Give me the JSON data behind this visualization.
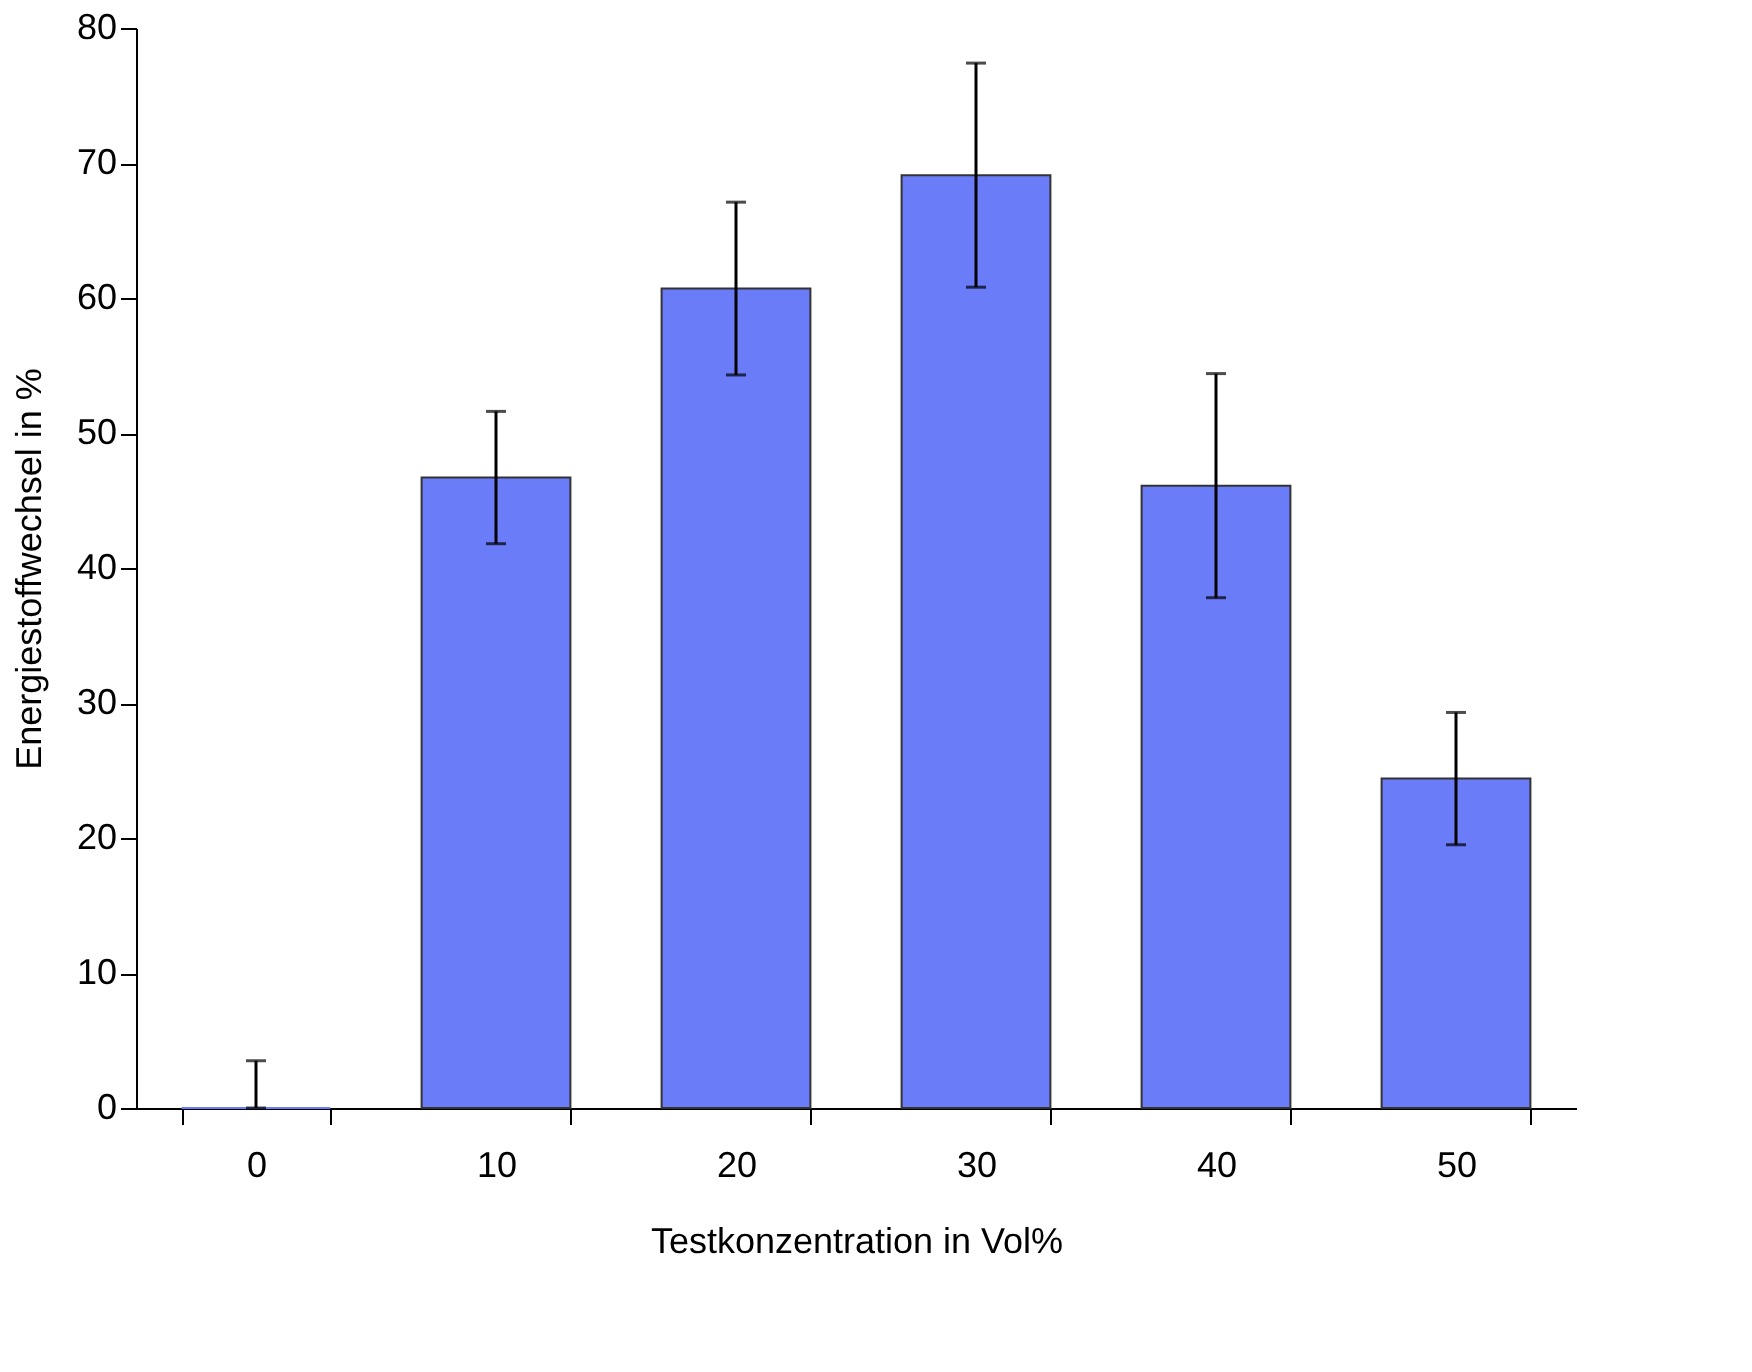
{
  "chart_data": {
    "type": "bar",
    "xlabel": "Testkonzentration in Vol%",
    "ylabel": "Energiestoffwechsel in %",
    "categories": [
      "0",
      "10",
      "20",
      "30",
      "40",
      "50"
    ],
    "values": [
      0,
      46.7,
      60.7,
      69.1,
      46.1,
      24.4
    ],
    "errors": [
      [
        0,
        3.5
      ],
      4.9,
      6.4,
      8.3,
      8.3,
      4.9
    ],
    "color": "#6a7cf8",
    "ylim": [
      0,
      80
    ],
    "yticks": [
      0,
      10,
      20,
      30,
      40,
      50,
      60,
      70,
      80
    ],
    "grid": false
  }
}
